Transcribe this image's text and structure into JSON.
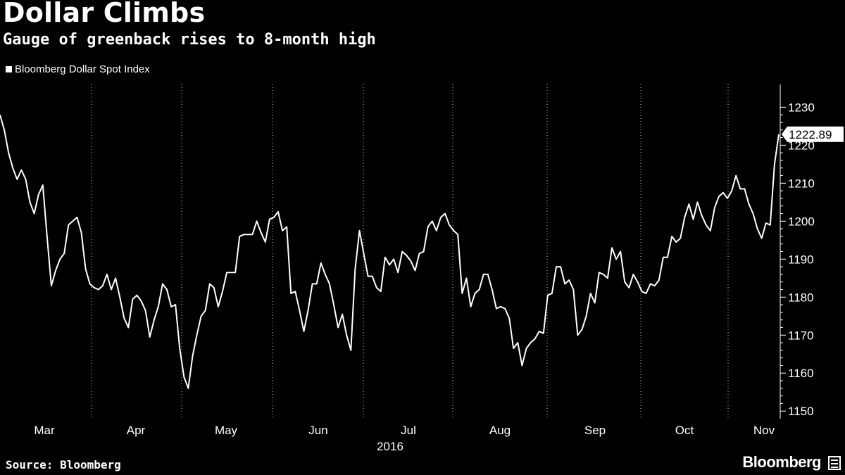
{
  "header": {
    "title": "Dollar Climbs",
    "subtitle": "Gauge of greenback rises to 8-month high"
  },
  "footer": {
    "source": "Source: Bloomberg",
    "brand": "Bloomberg"
  },
  "colors": {
    "background": "#000000",
    "line": "#ffffff",
    "grid": "#ffffff"
  },
  "chart_data": {
    "type": "line",
    "title": "Dollar Climbs",
    "subtitle": "Gauge of greenback rises to 8-month high",
    "legend": {
      "position": "top-left",
      "entries": [
        "Bloomberg Dollar Spot Index"
      ]
    },
    "series": [
      {
        "name": "Bloomberg Dollar Spot Index",
        "last_value_label": "1222.89",
        "values": [
          1228,
          1224,
          1218,
          1214,
          1211,
          1213.5,
          1211,
          1205,
          1202,
          1207,
          1209.5,
          1196,
          1183,
          1187,
          1190,
          1191.5,
          1199,
          1200,
          1201,
          1197,
          1187.5,
          1183.5,
          1182.5,
          1182,
          1183,
          1186,
          1182,
          1185,
          1180,
          1174.5,
          1172,
          1179.5,
          1180.5,
          1179,
          1176.5,
          1169.5,
          1174,
          1177.5,
          1183.5,
          1182,
          1177.5,
          1178,
          1166.5,
          1159,
          1156,
          1164.5,
          1170,
          1175,
          1176.5,
          1183.5,
          1182.5,
          1177.5,
          1181.5,
          1186.5,
          1186.5,
          1186.5,
          1196,
          1196.5,
          1196.5,
          1196.5,
          1200,
          1197,
          1194.5,
          1200.5,
          1201,
          1202.5,
          1197.5,
          1198.5,
          1181,
          1181.5,
          1176.5,
          1171,
          1176.5,
          1183.5,
          1183.5,
          1189,
          1186,
          1183.5,
          1178,
          1172,
          1175.5,
          1170,
          1166,
          1187.5,
          1197.5,
          1191.5,
          1185.5,
          1185.5,
          1182.5,
          1181.5,
          1190.5,
          1188.5,
          1190,
          1186.5,
          1192,
          1191,
          1189.5,
          1187,
          1191.5,
          1192,
          1198.5,
          1200,
          1197.5,
          1201,
          1202,
          1199,
          1197.5,
          1196.5,
          1181,
          1185,
          1177.5,
          1181,
          1182,
          1186,
          1186,
          1182,
          1177,
          1177.5,
          1177,
          1174.5,
          1166.5,
          1168,
          1162,
          1166.5,
          1168,
          1169,
          1171,
          1170.5,
          1180.5,
          1181,
          1188,
          1188,
          1183.5,
          1184.5,
          1182,
          1170,
          1171.5,
          1175,
          1181,
          1178.5,
          1186.5,
          1186,
          1185,
          1193,
          1190,
          1192,
          1184,
          1182.5,
          1186,
          1184,
          1181.5,
          1181,
          1183.5,
          1183,
          1184.5,
          1190.5,
          1190.5,
          1196,
          1194.5,
          1195.5,
          1201,
          1204.5,
          1200.5,
          1205,
          1201.5,
          1199,
          1197.5,
          1203.5,
          1206.5,
          1207.5,
          1206,
          1208,
          1212,
          1208.5,
          1208.5,
          1204.5,
          1202,
          1198,
          1195.5,
          1199.5,
          1199,
          1215,
          1222.89
        ]
      }
    ],
    "x_axis": {
      "label": "",
      "months": [
        "Mar",
        "Apr",
        "May",
        "Jun",
        "Jul",
        "Aug",
        "Sep",
        "Oct",
        "Nov"
      ],
      "year_label": "2016"
    },
    "y_axis": {
      "label": "",
      "position": "right",
      "ylim": [
        1148,
        1236
      ],
      "ticks": [
        1150,
        1160,
        1170,
        1180,
        1190,
        1200,
        1210,
        1220,
        1230
      ]
    },
    "grid": {
      "vertical": true,
      "horizontal": false,
      "style": "dotted"
    }
  }
}
